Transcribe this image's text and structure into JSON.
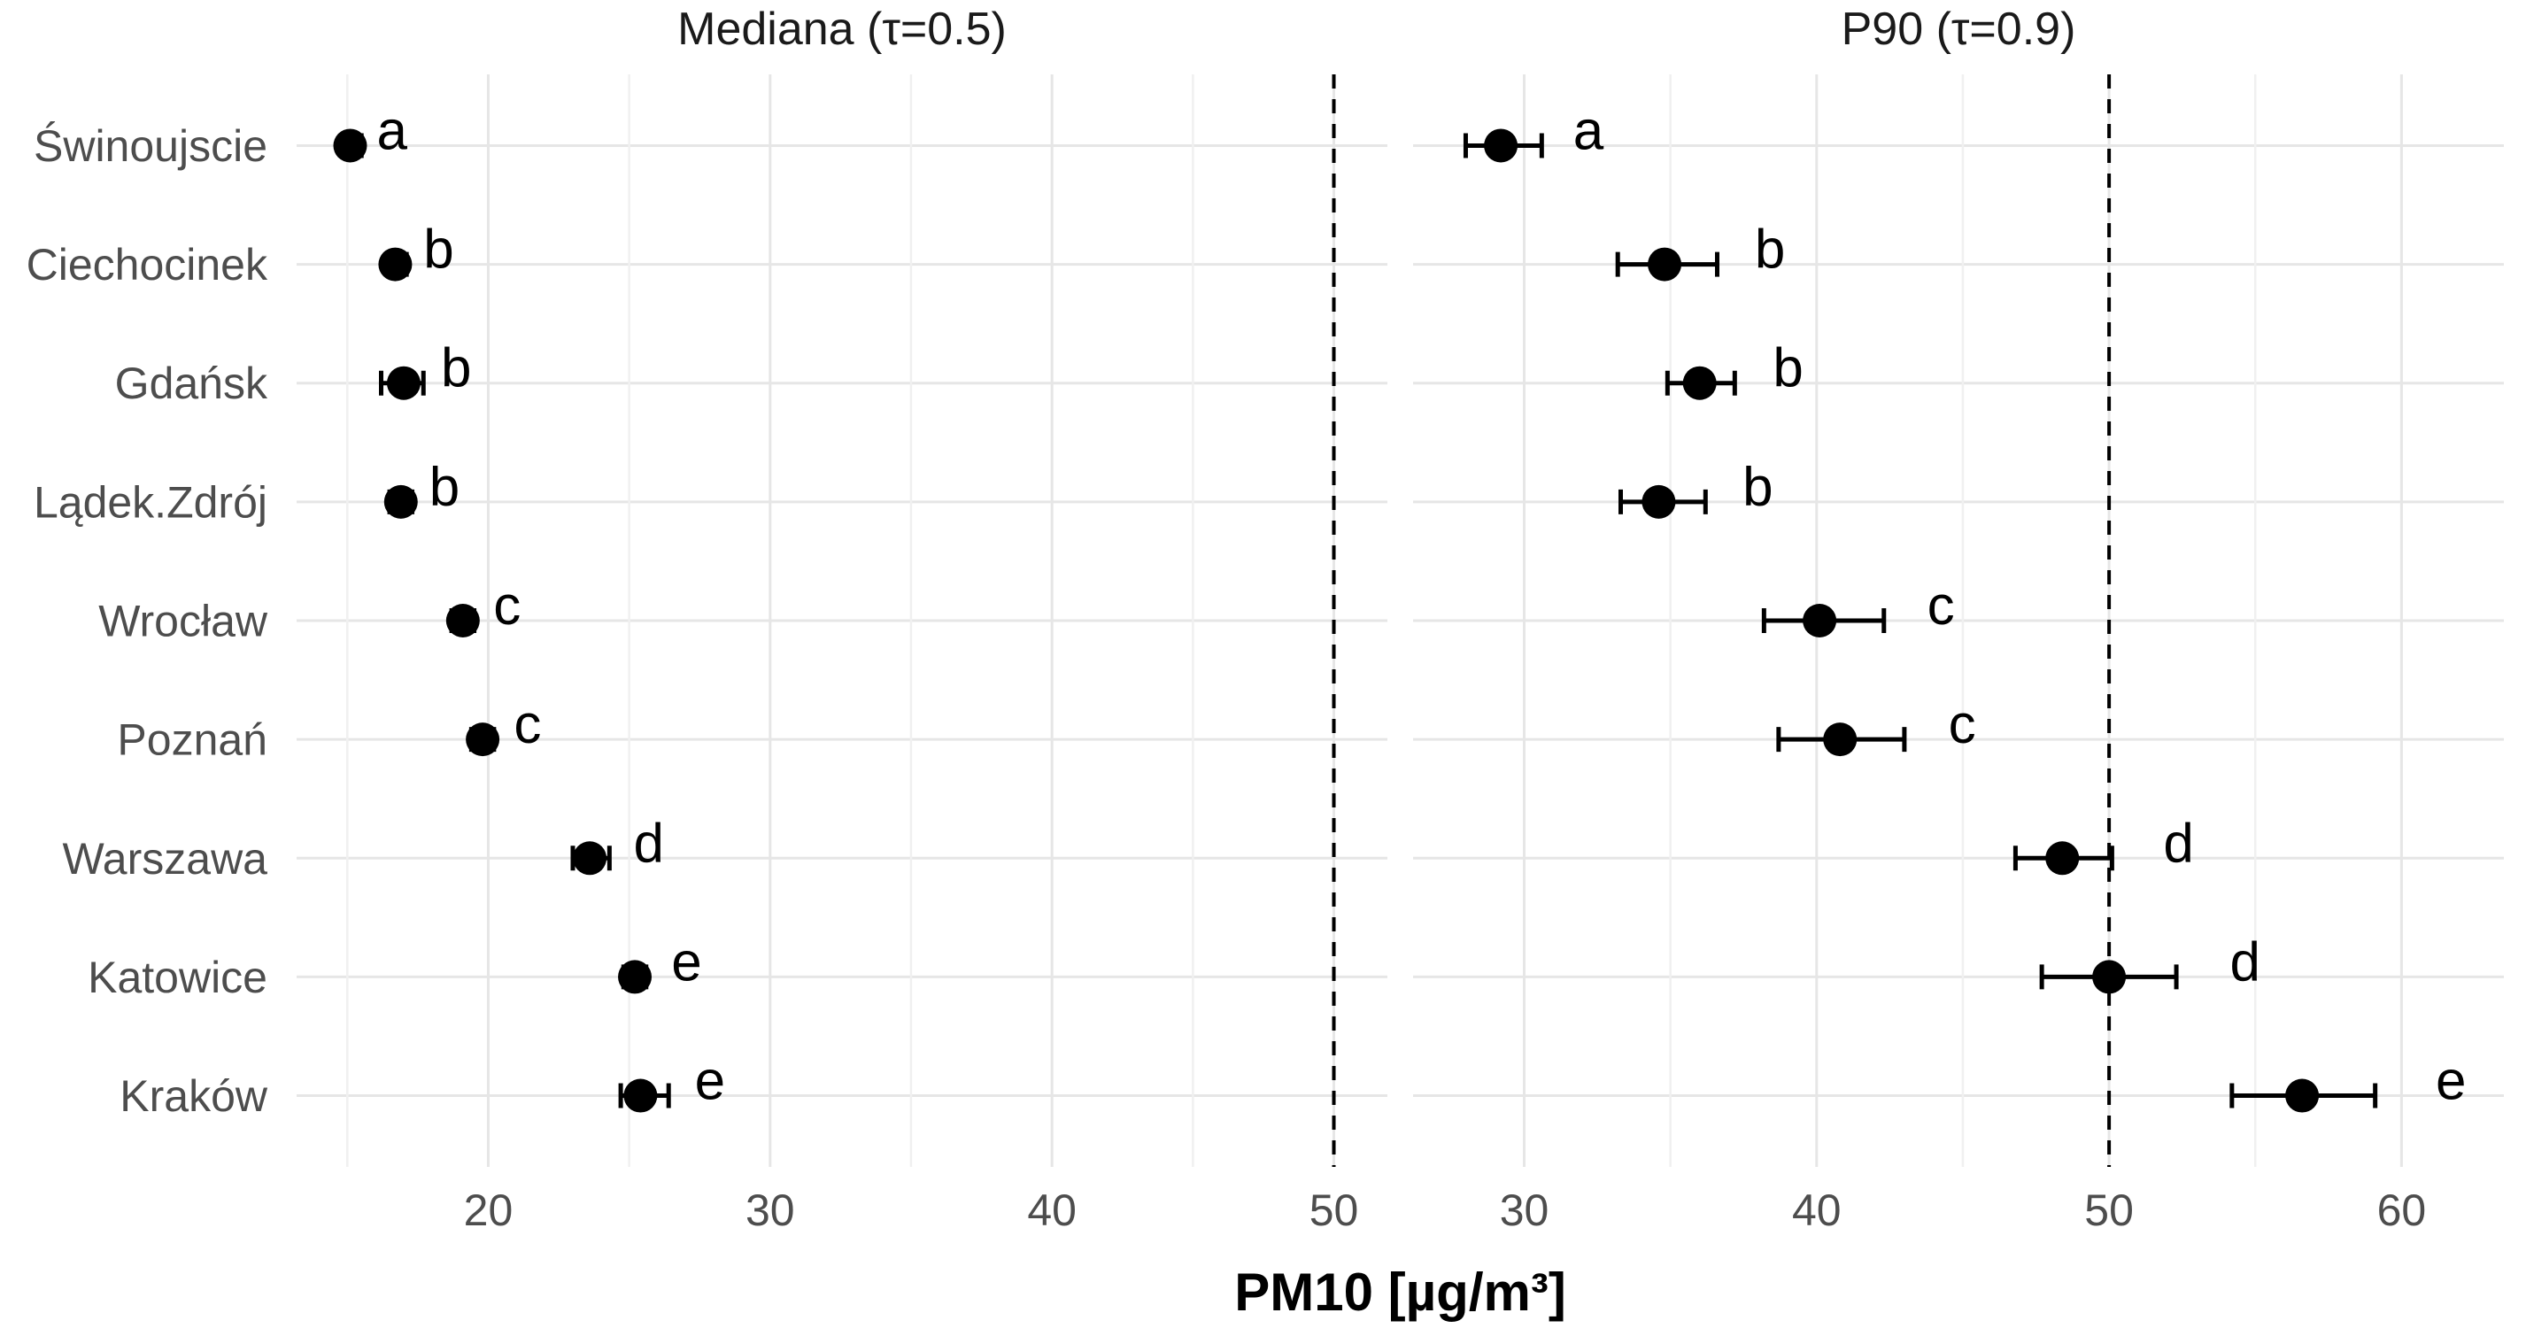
{
  "chart_data": {
    "type": "scatter",
    "subtype": "pointrange-faceted",
    "title": "",
    "xlabel": "PM10 [µg/m³]",
    "ylabel": "",
    "grid": true,
    "legend": false,
    "categories": [
      "Świnoujscie",
      "Ciechocinek",
      "Gdańsk",
      "Lądek.Zdrój",
      "Wrocław",
      "Poznań",
      "Warszawa",
      "Katowice",
      "Kraków"
    ],
    "facets": [
      {
        "label": "Mediana (τ=0.5)",
        "xlim": [
          13.2,
          51.9
        ],
        "xticks": [
          20,
          30,
          40,
          50
        ],
        "xminor": [
          15,
          25,
          35,
          45
        ],
        "vline": 50,
        "points": [
          {
            "city": "Świnoujscie",
            "value": 15.1,
            "lower": 14.8,
            "upper": 15.5,
            "letter": "a"
          },
          {
            "city": "Ciechocinek",
            "value": 16.7,
            "lower": 16.4,
            "upper": 17.1,
            "letter": "b"
          },
          {
            "city": "Gdańsk",
            "value": 17.0,
            "lower": 16.2,
            "upper": 17.7,
            "letter": "b"
          },
          {
            "city": "Lądek.Zdrój",
            "value": 16.9,
            "lower": 16.5,
            "upper": 17.3,
            "letter": "b"
          },
          {
            "city": "Wrocław",
            "value": 19.1,
            "lower": 18.7,
            "upper": 19.5,
            "letter": "c"
          },
          {
            "city": "Poznań",
            "value": 19.8,
            "lower": 19.4,
            "upper": 20.2,
            "letter": "c"
          },
          {
            "city": "Warszawa",
            "value": 23.6,
            "lower": 23.0,
            "upper": 24.3,
            "letter": "d"
          },
          {
            "city": "Katowice",
            "value": 25.2,
            "lower": 24.8,
            "upper": 25.6,
            "letter": "e"
          },
          {
            "city": "Kraków",
            "value": 25.4,
            "lower": 24.7,
            "upper": 26.4,
            "letter": "e"
          }
        ]
      },
      {
        "label": "P90 (τ=0.9)",
        "xlim": [
          26.2,
          63.5
        ],
        "xticks": [
          30,
          40,
          50,
          60
        ],
        "xminor": [
          35,
          45,
          55
        ],
        "vline": 50,
        "points": [
          {
            "city": "Świnoujscie",
            "value": 29.2,
            "lower": 28.0,
            "upper": 30.6,
            "letter": "a"
          },
          {
            "city": "Ciechocinek",
            "value": 34.8,
            "lower": 33.2,
            "upper": 36.6,
            "letter": "b"
          },
          {
            "city": "Gdańsk",
            "value": 36.0,
            "lower": 34.9,
            "upper": 37.2,
            "letter": "b"
          },
          {
            "city": "Lądek.Zdrój",
            "value": 34.6,
            "lower": 33.3,
            "upper": 36.2,
            "letter": "b"
          },
          {
            "city": "Wrocław",
            "value": 40.1,
            "lower": 38.2,
            "upper": 42.3,
            "letter": "c"
          },
          {
            "city": "Poznań",
            "value": 40.8,
            "lower": 38.7,
            "upper": 43.0,
            "letter": "c"
          },
          {
            "city": "Warszawa",
            "value": 48.4,
            "lower": 46.8,
            "upper": 50.1,
            "letter": "d"
          },
          {
            "city": "Katowice",
            "value": 50.0,
            "lower": 47.7,
            "upper": 52.3,
            "letter": "d"
          },
          {
            "city": "Kraków",
            "value": 56.6,
            "lower": 54.2,
            "upper": 59.1,
            "letter": "e"
          }
        ]
      }
    ]
  },
  "colors": {
    "background": "#ffffff",
    "point": "#000000",
    "errorbar": "#000000",
    "letter": "#000000",
    "reference_line": "#000000",
    "grid_major": "#e6e6e6",
    "grid_minor": "#f0f0f0",
    "axis_text": "#4d4d4d",
    "strip_text": "#1a1a1a",
    "axis_title": "#000000"
  }
}
